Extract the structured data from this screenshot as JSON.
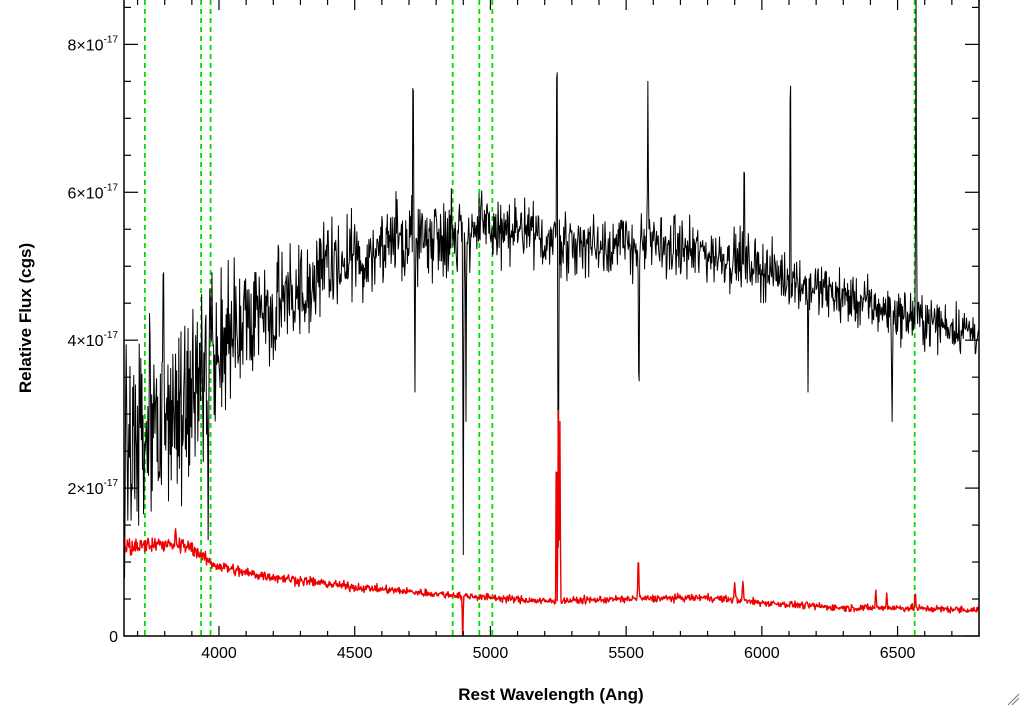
{
  "chart_data": {
    "type": "line",
    "title": "",
    "xlabel": "Rest Wavelength (Ang)",
    "ylabel": "Relative Flux (cgs)",
    "xlim": [
      3650,
      6800
    ],
    "ylim": [
      0,
      8.6e-17
    ],
    "x_ticks": [
      {
        "value": 4000,
        "label": "4000"
      },
      {
        "value": 4500,
        "label": "4500"
      },
      {
        "value": 5000,
        "label": "5000"
      },
      {
        "value": 5500,
        "label": "5500"
      },
      {
        "value": 6000,
        "label": "6000"
      },
      {
        "value": 6500,
        "label": "6500"
      }
    ],
    "y_ticks": [
      {
        "value": 0,
        "mant": "0",
        "times": "",
        "base": "",
        "exp": ""
      },
      {
        "value": 2e-17,
        "mant": "2",
        "times": "×",
        "base": "10",
        "exp": "-17"
      },
      {
        "value": 4e-17,
        "mant": "4",
        "times": "×",
        "base": "10",
        "exp": "-17"
      },
      {
        "value": 6e-17,
        "mant": "6",
        "times": "×",
        "base": "10",
        "exp": "-17"
      },
      {
        "value": 8e-17,
        "mant": "8",
        "times": "×",
        "base": "10",
        "exp": "-17"
      }
    ],
    "grid": false,
    "vertical_markers": {
      "color": "#00dd00",
      "style": "dashed",
      "x": [
        3727,
        3934,
        3969,
        4861,
        4959,
        5007,
        6563
      ]
    },
    "series": [
      {
        "color": "#000000",
        "style": "spectrum",
        "continuum_knots": [
          [
            3650,
            2.5e-17
          ],
          [
            3800,
            2.9e-17
          ],
          [
            3950,
            3.6e-17
          ],
          [
            4100,
            4.2e-17
          ],
          [
            4300,
            4.7e-17
          ],
          [
            4500,
            5.1e-17
          ],
          [
            4700,
            5.4e-17
          ],
          [
            5000,
            5.5e-17
          ],
          [
            5300,
            5.3e-17
          ],
          [
            5600,
            5.3e-17
          ],
          [
            5900,
            5.1e-17
          ],
          [
            6200,
            4.7e-17
          ],
          [
            6500,
            4.35e-17
          ],
          [
            6800,
            4.1e-17
          ]
        ],
        "noise_knots": [
          [
            3650,
            1.3e-17
          ],
          [
            3950,
            1.1e-17
          ],
          [
            4200,
            7.5e-18
          ],
          [
            4600,
            5.5e-18
          ],
          [
            5200,
            4.5e-18
          ],
          [
            5800,
            3.8e-18
          ],
          [
            6400,
            3.4e-18
          ],
          [
            6800,
            3.2e-18
          ]
        ],
        "features": [
          {
            "x": 3745,
            "value": 4.5e-17,
            "width": 3
          },
          {
            "x": 3795,
            "value": 5.7e-17,
            "width": 3
          },
          {
            "x": 3960,
            "value": 1.3e-17,
            "width": 3
          },
          {
            "x": 4715,
            "value": 8.4e-17,
            "width": 2
          },
          {
            "x": 4722,
            "value": 3.3e-17,
            "width": 2
          },
          {
            "x": 4900,
            "value": 1.1e-17,
            "width": 2
          },
          {
            "x": 4910,
            "value": 2.9e-17,
            "width": 2
          },
          {
            "x": 5245,
            "value": 8.6e-17,
            "width": 2
          },
          {
            "x": 5250,
            "value": 1.2e-17,
            "width": 2
          },
          {
            "x": 5547,
            "value": 3e-17,
            "width": 3
          },
          {
            "x": 5580,
            "value": 7.5e-17,
            "width": 2
          },
          {
            "x": 5935,
            "value": 6.8e-17,
            "width": 2
          },
          {
            "x": 6105,
            "value": 8.6e-17,
            "width": 2
          },
          {
            "x": 6170,
            "value": 3.3e-17,
            "width": 2
          },
          {
            "x": 6480,
            "value": 2.9e-17,
            "width": 3
          },
          {
            "x": 6568,
            "value": 8.6e-17,
            "width": 2
          }
        ]
      },
      {
        "color": "#ee0000",
        "style": "spectrum",
        "continuum_knots": [
          [
            3650,
            1.2e-17
          ],
          [
            3800,
            1.25e-17
          ],
          [
            3900,
            1.2e-17
          ],
          [
            3970,
            9.8e-18
          ],
          [
            4100,
            8.5e-18
          ],
          [
            4300,
            7.5e-18
          ],
          [
            4500,
            6.6e-18
          ],
          [
            4800,
            5.7e-18
          ],
          [
            5000,
            5.2e-18
          ],
          [
            5200,
            4.7e-18
          ],
          [
            5500,
            5e-18
          ],
          [
            5800,
            5.2e-18
          ],
          [
            6000,
            4.5e-18
          ],
          [
            6300,
            3.8e-18
          ],
          [
            6500,
            3.8e-18
          ],
          [
            6800,
            3.5e-18
          ]
        ],
        "noise_knots": [
          [
            3650,
            1.2e-18
          ],
          [
            4000,
            8e-19
          ],
          [
            4600,
            5e-19
          ],
          [
            6800,
            4.5e-19
          ]
        ],
        "features": [
          {
            "x": 3840,
            "value": 1.45e-17,
            "width": 4
          },
          {
            "x": 4898,
            "value": -1.5e-18,
            "width": 2
          },
          {
            "x": 5243,
            "value": 3.1e-17,
            "width": 2
          },
          {
            "x": 5250,
            "value": 3.05e-17,
            "width": 2
          },
          {
            "x": 5256,
            "value": 2.9e-17,
            "width": 2
          },
          {
            "x": 5545,
            "value": 1.15e-17,
            "width": 3
          },
          {
            "x": 5900,
            "value": 7.2e-18,
            "width": 4
          },
          {
            "x": 5930,
            "value": 7.4e-18,
            "width": 4
          },
          {
            "x": 6420,
            "value": 6.2e-18,
            "width": 3
          },
          {
            "x": 6460,
            "value": 5.8e-18,
            "width": 3
          },
          {
            "x": 6565,
            "value": 6.2e-18,
            "width": 3
          }
        ]
      }
    ]
  }
}
